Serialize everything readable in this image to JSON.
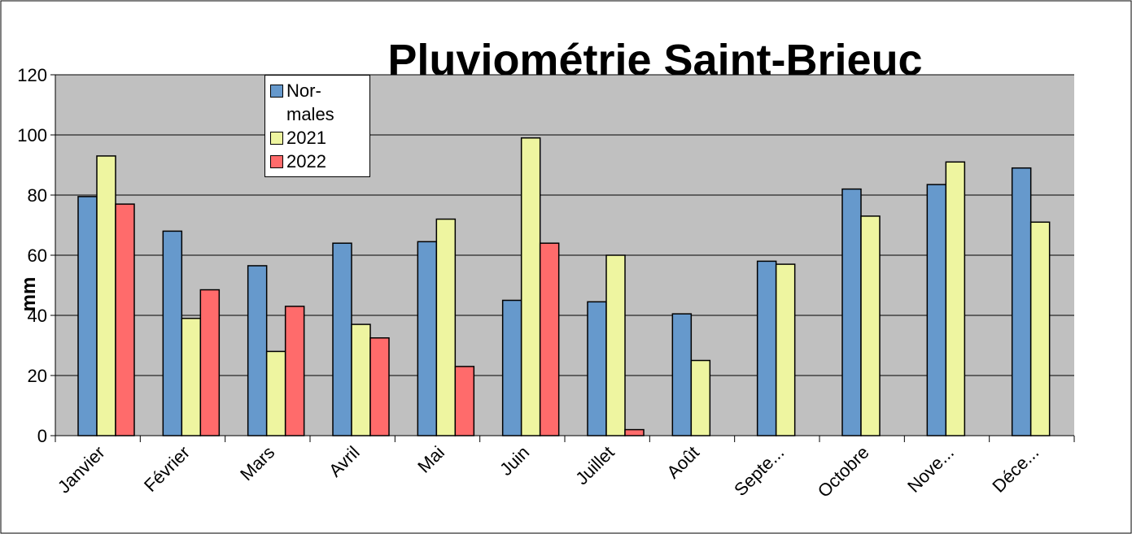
{
  "chart_data": {
    "type": "bar",
    "title": "Pluviométrie  Saint-Brieuc",
    "y_label": "mm",
    "categories": [
      "Janvier",
      "Février",
      "Mars",
      "Avril",
      "Mai",
      "Juin",
      "Juillet",
      "Août",
      "Septe...",
      "Octobre",
      "Nove...",
      "Déce..."
    ],
    "series": [
      {
        "name": "Nor-males",
        "color": "#6699cc",
        "values": [
          79.5,
          68,
          56.5,
          64,
          64.5,
          45,
          44.5,
          40.5,
          58,
          82,
          83.5,
          89
        ]
      },
      {
        "name": "2021",
        "color": "#eef5a0",
        "values": [
          93,
          39,
          28,
          37,
          72,
          99,
          60,
          25,
          57,
          73,
          91,
          71
        ]
      },
      {
        "name": "2022",
        "color": "#ff6b6b",
        "values": [
          77,
          48.5,
          43,
          32.5,
          23,
          64,
          2,
          null,
          null,
          null,
          null,
          null
        ]
      }
    ],
    "ylim": [
      0,
      120
    ],
    "yticks": [
      0,
      20,
      40,
      60,
      80,
      100,
      120
    ],
    "grid": true
  }
}
